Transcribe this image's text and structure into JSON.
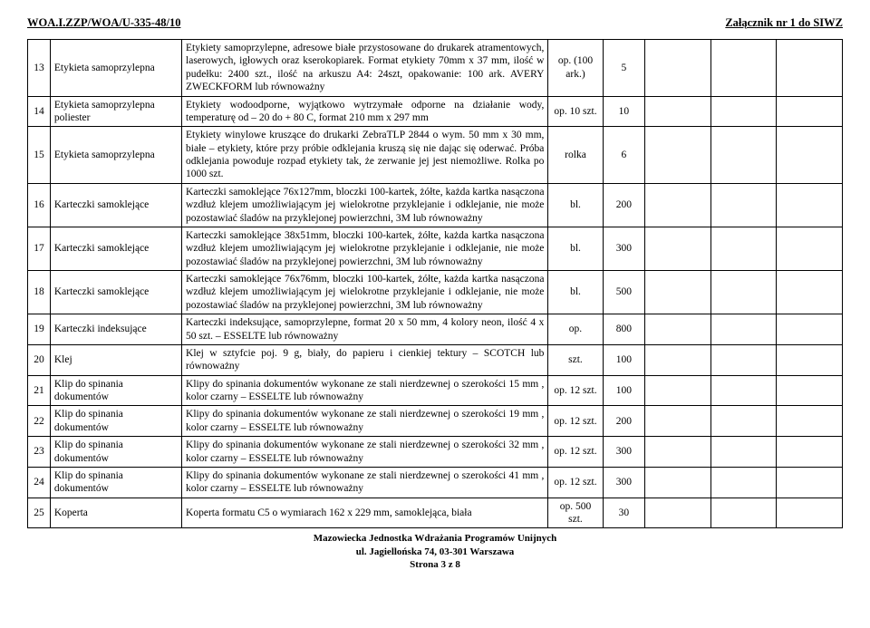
{
  "header": {
    "left": "WOA.I.ZZP/WOA/U-335-48/10",
    "right": "Załącznik nr 1 do SIWZ"
  },
  "rows": [
    {
      "num": "13",
      "name": "Etykieta samoprzylepna",
      "desc": "Etykiety samoprzylepne, adresowe białe przystosowane do drukarek atramentowych, laserowych, igłowych oraz kserokopiarek. Format etykiety  70mm x 37 mm, ilość w pudełku: 2400 szt., ilość na arkuszu A4: 24szt, opakowanie: 100 ark. AVERY ZWECKFORM lub równoważny",
      "unit": "op. (100 ark.)",
      "qty": "5"
    },
    {
      "num": "14",
      "name": "Etykieta samoprzylepna poliester",
      "desc": "Etykiety wodoodporne, wyjątkowo wytrzymałe odporne na działanie wody, temperaturę od – 20 do + 80 C, format 210 mm x 297 mm",
      "unit": "op. 10 szt.",
      "qty": "10"
    },
    {
      "num": "15",
      "name": "Etykieta samoprzylepna",
      "desc": "Etykiety winylowe kruszące do drukarki ZebraTLP 2844  o wym. 50 mm x 30 mm, białe – etykiety, które przy próbie odklejania kruszą się nie dając się oderwać. Próba odklejania powoduje rozpad etykiety tak, że zerwanie jej jest niemożliwe. Rolka po 1000 szt.",
      "unit": "rolka",
      "qty": "6"
    },
    {
      "num": "16",
      "name": "Karteczki samoklejące",
      "desc": "Karteczki samoklejące 76x127mm, bloczki 100-kartek, żółte, każda kartka nasączona wzdłuż klejem umożliwiającym jej wielokrotne przyklejanie i odklejanie, nie może pozostawiać śladów na przyklejonej powierzchni, 3M lub równoważny",
      "unit": "bl.",
      "qty": "200"
    },
    {
      "num": "17",
      "name": "Karteczki samoklejące",
      "desc": "Karteczki samoklejące 38x51mm, bloczki 100-kartek, żółte, każda kartka nasączona wzdłuż klejem umożliwiającym jej wielokrotne przyklejanie i odklejanie, nie może pozostawiać śladów na przyklejonej powierzchni, 3M lub równoważny",
      "unit": "bl.",
      "qty": "300"
    },
    {
      "num": "18",
      "name": "Karteczki samoklejące",
      "desc": "Karteczki samoklejące 76x76mm, bloczki 100-kartek, żółte, każda kartka nasączona wzdłuż klejem umożliwiającym jej wielokrotne przyklejanie i odklejanie, nie może pozostawiać śladów na przyklejonej powierzchni, 3M lub równoważny",
      "unit": "bl.",
      "qty": "500"
    },
    {
      "num": "19",
      "name": "Karteczki indeksujące",
      "desc": "Karteczki indeksujące, samoprzylepne, format 20 x 50 mm, 4 kolory neon, ilość 4 x 50 szt. – ESSELTE lub równoważny",
      "unit": "op.",
      "qty": "800"
    },
    {
      "num": "20",
      "name": "Klej",
      "desc": "Klej w sztyfcie poj. 9 g, biały, do papieru i cienkiej tektury – SCOTCH lub równoważny",
      "unit": "szt.",
      "qty": "100"
    },
    {
      "num": "21",
      "name": "Klip do spinania dokumentów",
      "desc": "Klipy do spinania dokumentów wykonane ze stali nierdzewnej o szerokości 15 mm , kolor czarny – ESSELTE lub równoważny",
      "unit": "op. 12 szt.",
      "qty": "100"
    },
    {
      "num": "22",
      "name": "Klip do spinania dokumentów",
      "desc": "Klipy do spinania dokumentów wykonane ze stali nierdzewnej o szerokości 19 mm , kolor czarny – ESSELTE lub równoważny",
      "unit": "op. 12 szt.",
      "qty": "200"
    },
    {
      "num": "23",
      "name": "Klip do spinania dokumentów",
      "desc": "Klipy do spinania dokumentów wykonane ze stali nierdzewnej o szerokości 32 mm , kolor czarny – ESSELTE lub równoważny",
      "unit": "op. 12 szt.",
      "qty": "300"
    },
    {
      "num": "24",
      "name": "Klip do spinania dokumentów",
      "desc": "Klipy do spinania dokumentów wykonane ze stali nierdzewnej o szerokości 41 mm , kolor czarny – ESSELTE lub równoważny",
      "unit": "op. 12 szt.",
      "qty": "300"
    },
    {
      "num": "25",
      "name": "Koperta",
      "desc": "Koperta formatu C5 o wymiarach 162 x 229 mm, samoklejąca, biała",
      "unit": "op. 500 szt.",
      "qty": "30"
    }
  ],
  "footer": {
    "line1": "Mazowiecka Jednostka Wdrażania Programów Unijnych",
    "line2": "ul. Jagiellońska 74, 03-301 Warszawa",
    "line3": "Strona 3 z 8"
  }
}
